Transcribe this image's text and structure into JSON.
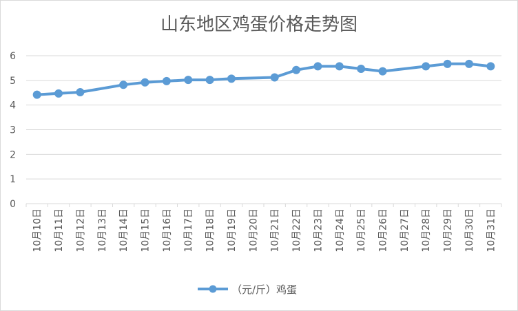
{
  "chart_data": {
    "type": "line",
    "title": "山东地区鸡蛋价格走势图",
    "categories": [
      "10月10日",
      "10月11日",
      "10月12日",
      "10月13日",
      "10月14日",
      "10月15日",
      "10月16日",
      "10月17日",
      "10月18日",
      "10月19日",
      "10月20日",
      "10月21日",
      "10月22日",
      "10月23日",
      "10月24日",
      "10月25日",
      "10月26日",
      "10月27日",
      "10月28日",
      "10月29日",
      "10月30日",
      "10月31日"
    ],
    "series": [
      {
        "name": "（元/斤）鸡蛋",
        "values": [
          4.42,
          4.47,
          4.52,
          null,
          4.82,
          4.92,
          4.97,
          5.02,
          5.02,
          5.07,
          null,
          5.12,
          5.42,
          5.57,
          5.57,
          5.47,
          5.37,
          null,
          5.57,
          5.67,
          5.67,
          5.57
        ]
      }
    ],
    "yticks": [
      "0",
      "1",
      "2",
      "3",
      "4",
      "5",
      "6"
    ],
    "ylim": [
      0,
      6
    ],
    "grid": true,
    "legend": "bottom",
    "color": "#5b9bd5"
  }
}
